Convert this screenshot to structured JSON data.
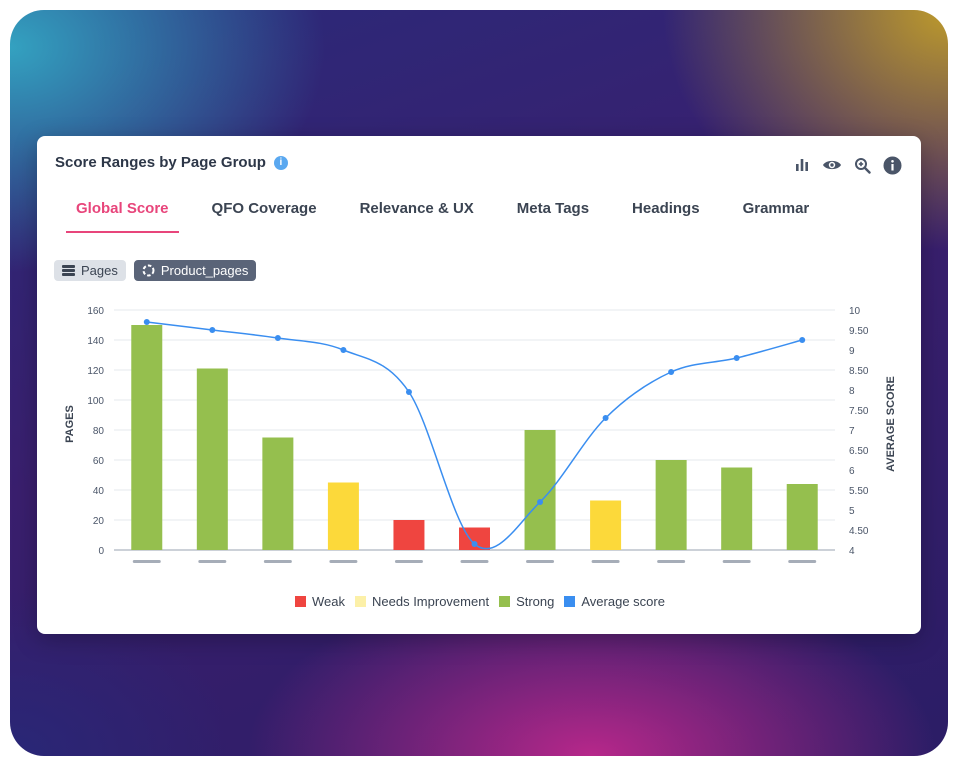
{
  "card": {
    "title": "Score Ranges by Page Group",
    "info_glyph": "i"
  },
  "toolbar": {
    "icons": [
      "bar-chart-icon",
      "eye-icon",
      "zoom-icon",
      "info-icon"
    ]
  },
  "tabs": [
    {
      "label": "Global Score",
      "active": true
    },
    {
      "label": "QFO Coverage",
      "active": false
    },
    {
      "label": "Relevance & UX",
      "active": false
    },
    {
      "label": "Meta Tags",
      "active": false
    },
    {
      "label": "Headings",
      "active": false
    },
    {
      "label": "Grammar",
      "active": false
    }
  ],
  "chips": [
    {
      "label": "Pages",
      "icon": "list-icon"
    },
    {
      "label": "Product_pages",
      "icon": "spinner-icon"
    }
  ],
  "colors": {
    "weak": "#ef4540",
    "needs_improvement": "#fcd93a",
    "strong": "#95bf4e",
    "average_score": "#3a8ef0",
    "accent": "#e8457b"
  },
  "chart_data": {
    "type": "bar",
    "categories": [
      "",
      "",
      "",
      "",
      "",
      "",
      "",
      "",
      "",
      "",
      ""
    ],
    "bars": [
      {
        "value": 150,
        "range": "Strong"
      },
      {
        "value": 121,
        "range": "Strong"
      },
      {
        "value": 75,
        "range": "Strong"
      },
      {
        "value": 45,
        "range": "Needs Improvement"
      },
      {
        "value": 20,
        "range": "Weak"
      },
      {
        "value": 15,
        "range": "Weak"
      },
      {
        "value": 80,
        "range": "Strong"
      },
      {
        "value": 33,
        "range": "Needs Improvement"
      },
      {
        "value": 60,
        "range": "Strong"
      },
      {
        "value": 55,
        "range": "Strong"
      },
      {
        "value": 44,
        "range": "Strong"
      }
    ],
    "series": [
      {
        "name": "Average score",
        "type": "line",
        "axis": "right",
        "values": [
          9.7,
          9.5,
          9.3,
          9.0,
          7.95,
          4.15,
          5.2,
          7.3,
          8.45,
          8.8,
          9.25
        ]
      }
    ],
    "ylabel": "PAGES",
    "y2label": "AVERAGE SCORE",
    "ylim": [
      0,
      160
    ],
    "y2lim": [
      4,
      10
    ],
    "yticks": [
      "0",
      "20",
      "40",
      "60",
      "80",
      "100",
      "120",
      "140",
      "160"
    ],
    "y2ticks": [
      "4",
      "4.50",
      "5",
      "5.50",
      "6",
      "6.50",
      "7",
      "7.50",
      "8",
      "8.50",
      "9",
      "9.50",
      "10"
    ],
    "legend": [
      "Weak",
      "Needs Improvement",
      "Strong",
      "Average score"
    ],
    "legend_position": "bottom",
    "grid": true
  }
}
